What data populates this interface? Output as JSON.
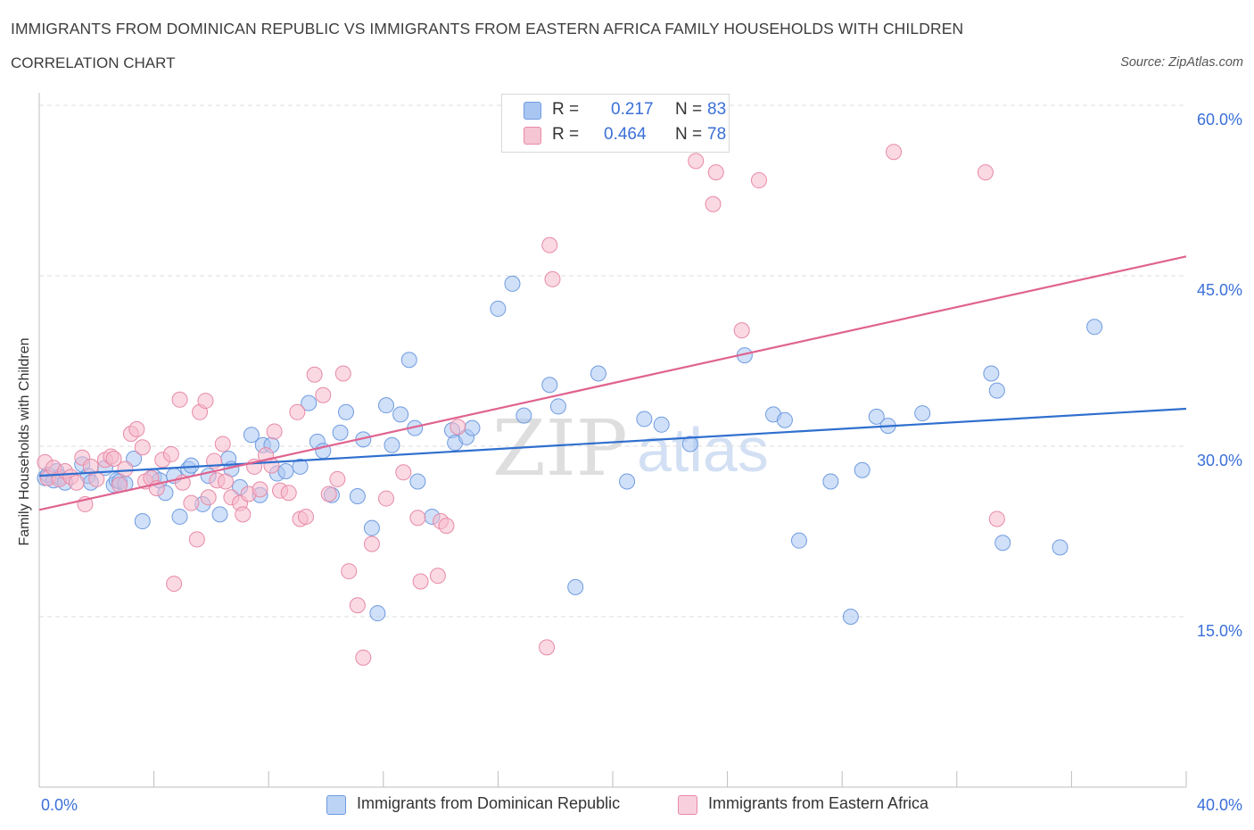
{
  "header": {
    "title": "IMMIGRANTS FROM DOMINICAN REPUBLIC VS IMMIGRANTS FROM EASTERN AFRICA FAMILY HOUSEHOLDS WITH CHILDREN",
    "subtitle": "CORRELATION CHART",
    "source": "Source: ZipAtlas.com"
  },
  "legend": {
    "r_label": "R =",
    "n_label": "N =",
    "series1": {
      "r": "0.217",
      "n": "83"
    },
    "series2": {
      "r": "0.464",
      "n": "78"
    }
  },
  "colors": {
    "blue_fill": "#a9c6f2",
    "blue_stroke": "#6f9be0",
    "blue_line": "#2f6fce",
    "pink_fill": "#f5b9cc",
    "pink_stroke": "#e88aa6",
    "pink_line": "#e0638f",
    "tick_label": "#3a6fd8",
    "grid": "#dddddd"
  },
  "chart_data": {
    "type": "scatter",
    "title": "IMMIGRANTS FROM DOMINICAN REPUBLIC VS IMMIGRANTS FROM EASTERN AFRICA FAMILY HOUSEHOLDS WITH CHILDREN",
    "ylabel": "Family Households with Children",
    "xlabel": "",
    "xlim": [
      0,
      40
    ],
    "ylim": [
      0,
      60
    ],
    "x_tick_labels": [
      "0.0%",
      "40.0%"
    ],
    "y_ticks": [
      15,
      30,
      45,
      60
    ],
    "y_tick_labels": [
      "15.0%",
      "30.0%",
      "45.0%",
      "60.0%"
    ],
    "watermark": {
      "zip": "ZIP",
      "atlas": "atlas"
    },
    "series": [
      {
        "name": "Immigrants from Dominican Republic",
        "r": 0.217,
        "n": 83,
        "trend": [
          [
            0,
            27.4
          ],
          [
            40,
            33.3
          ]
        ],
        "points": [
          [
            0.2,
            27.2
          ],
          [
            0.3,
            27.5
          ],
          [
            0.5,
            27.0
          ],
          [
            0.6,
            27.8
          ],
          [
            0.7,
            27.3
          ],
          [
            0.9,
            26.8
          ],
          [
            1.5,
            28.4
          ],
          [
            1.7,
            27.4
          ],
          [
            1.8,
            26.8
          ],
          [
            2.3,
            28.1
          ],
          [
            2.6,
            26.6
          ],
          [
            2.7,
            27.0
          ],
          [
            2.8,
            26.9
          ],
          [
            3.0,
            26.7
          ],
          [
            3.3,
            28.9
          ],
          [
            3.6,
            23.4
          ],
          [
            4.0,
            27.3
          ],
          [
            4.2,
            27.0
          ],
          [
            4.4,
            25.9
          ],
          [
            4.7,
            27.4
          ],
          [
            4.9,
            23.8
          ],
          [
            5.2,
            28.0
          ],
          [
            5.3,
            28.3
          ],
          [
            5.7,
            24.9
          ],
          [
            5.9,
            27.4
          ],
          [
            6.3,
            24.0
          ],
          [
            6.6,
            28.9
          ],
          [
            6.7,
            28.0
          ],
          [
            7.0,
            26.4
          ],
          [
            7.4,
            31.0
          ],
          [
            7.7,
            25.7
          ],
          [
            7.8,
            30.1
          ],
          [
            8.1,
            30.1
          ],
          [
            8.3,
            27.6
          ],
          [
            8.6,
            27.8
          ],
          [
            9.1,
            28.2
          ],
          [
            9.4,
            33.8
          ],
          [
            9.7,
            30.4
          ],
          [
            9.9,
            29.6
          ],
          [
            10.2,
            25.7
          ],
          [
            10.5,
            31.2
          ],
          [
            10.7,
            33.0
          ],
          [
            11.1,
            25.6
          ],
          [
            11.3,
            30.6
          ],
          [
            11.6,
            22.8
          ],
          [
            11.8,
            15.3
          ],
          [
            12.1,
            33.6
          ],
          [
            12.3,
            30.1
          ],
          [
            12.6,
            32.8
          ],
          [
            12.9,
            37.6
          ],
          [
            13.1,
            31.6
          ],
          [
            13.2,
            26.9
          ],
          [
            13.7,
            23.8
          ],
          [
            14.4,
            31.4
          ],
          [
            14.5,
            30.3
          ],
          [
            14.9,
            30.8
          ],
          [
            15.1,
            31.6
          ],
          [
            16.0,
            42.1
          ],
          [
            16.5,
            44.3
          ],
          [
            16.9,
            32.7
          ],
          [
            17.8,
            35.4
          ],
          [
            18.1,
            33.5
          ],
          [
            18.7,
            17.6
          ],
          [
            19.5,
            36.4
          ],
          [
            20.5,
            26.9
          ],
          [
            21.1,
            32.4
          ],
          [
            21.7,
            31.9
          ],
          [
            22.7,
            30.2
          ],
          [
            24.6,
            38.0
          ],
          [
            25.6,
            32.8
          ],
          [
            26.0,
            32.3
          ],
          [
            26.5,
            21.7
          ],
          [
            27.6,
            26.9
          ],
          [
            28.3,
            15.0
          ],
          [
            28.7,
            27.9
          ],
          [
            29.2,
            32.6
          ],
          [
            29.6,
            31.8
          ],
          [
            30.8,
            32.9
          ],
          [
            33.2,
            36.4
          ],
          [
            33.4,
            34.9
          ],
          [
            33.6,
            21.5
          ],
          [
            35.6,
            21.1
          ],
          [
            36.8,
            40.5
          ]
        ]
      },
      {
        "name": "Immigrants from Eastern Africa",
        "r": 0.464,
        "n": 78,
        "trend": [
          [
            0,
            24.4
          ],
          [
            40,
            46.7
          ]
        ],
        "points": [
          [
            0.2,
            28.6
          ],
          [
            0.3,
            27.2
          ],
          [
            0.5,
            28.1
          ],
          [
            0.7,
            27.1
          ],
          [
            0.9,
            27.8
          ],
          [
            1.1,
            27.3
          ],
          [
            1.3,
            26.8
          ],
          [
            1.5,
            29.0
          ],
          [
            1.6,
            24.9
          ],
          [
            1.8,
            28.2
          ],
          [
            2.0,
            27.1
          ],
          [
            2.3,
            28.8
          ],
          [
            2.5,
            29.1
          ],
          [
            2.6,
            28.9
          ],
          [
            2.8,
            26.6
          ],
          [
            3.0,
            28.0
          ],
          [
            3.2,
            31.1
          ],
          [
            3.4,
            31.5
          ],
          [
            3.6,
            29.9
          ],
          [
            3.7,
            26.9
          ],
          [
            3.9,
            27.2
          ],
          [
            4.1,
            26.3
          ],
          [
            4.3,
            28.8
          ],
          [
            4.6,
            29.3
          ],
          [
            4.7,
            17.9
          ],
          [
            4.9,
            34.1
          ],
          [
            5.0,
            26.8
          ],
          [
            5.3,
            25.0
          ],
          [
            5.5,
            21.8
          ],
          [
            5.6,
            33.0
          ],
          [
            5.8,
            34.0
          ],
          [
            5.9,
            25.5
          ],
          [
            6.1,
            28.7
          ],
          [
            6.2,
            27.0
          ],
          [
            6.4,
            30.2
          ],
          [
            6.5,
            26.9
          ],
          [
            6.7,
            25.5
          ],
          [
            7.0,
            25.0
          ],
          [
            7.1,
            24.0
          ],
          [
            7.3,
            25.8
          ],
          [
            7.5,
            28.2
          ],
          [
            7.7,
            26.2
          ],
          [
            7.9,
            29.2
          ],
          [
            8.1,
            28.3
          ],
          [
            8.2,
            31.3
          ],
          [
            8.4,
            26.1
          ],
          [
            8.7,
            25.9
          ],
          [
            9.0,
            33.0
          ],
          [
            9.1,
            23.6
          ],
          [
            9.3,
            23.8
          ],
          [
            9.6,
            36.3
          ],
          [
            9.9,
            34.5
          ],
          [
            10.1,
            25.8
          ],
          [
            10.4,
            27.1
          ],
          [
            10.6,
            36.4
          ],
          [
            10.8,
            19.0
          ],
          [
            11.1,
            16.0
          ],
          [
            11.3,
            11.4
          ],
          [
            11.6,
            21.4
          ],
          [
            12.1,
            25.4
          ],
          [
            12.7,
            27.7
          ],
          [
            13.2,
            23.7
          ],
          [
            13.3,
            18.1
          ],
          [
            13.9,
            18.6
          ],
          [
            14.0,
            23.4
          ],
          [
            14.2,
            23.0
          ],
          [
            14.6,
            31.7
          ],
          [
            17.7,
            12.3
          ],
          [
            17.8,
            47.7
          ],
          [
            17.9,
            44.7
          ],
          [
            22.9,
            55.1
          ],
          [
            23.5,
            51.3
          ],
          [
            23.6,
            54.1
          ],
          [
            24.5,
            40.2
          ],
          [
            25.1,
            53.4
          ],
          [
            29.8,
            55.9
          ],
          [
            33.0,
            54.1
          ],
          [
            33.4,
            23.6
          ]
        ]
      }
    ]
  }
}
